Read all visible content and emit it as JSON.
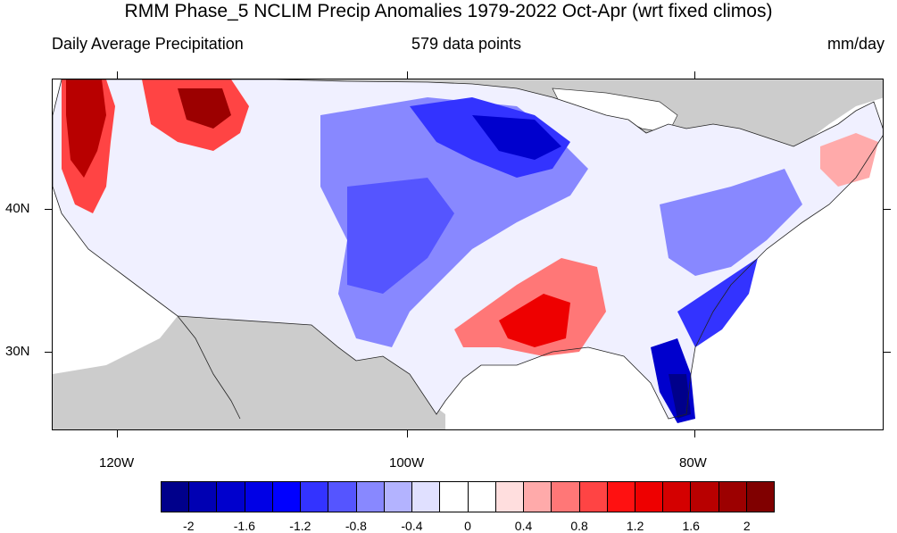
{
  "title": "RMM Phase_5 NCLIM Precip Anomalies 1979-2022 Oct-Apr (wrt fixed climos)",
  "subtitle_left": "Daily Average Precipitation",
  "subtitle_center": "579 data points",
  "subtitle_right": "mm/day",
  "axes": {
    "lat_labels": [
      "40N",
      "30N"
    ],
    "lon_labels": [
      "120W",
      "100W",
      "80W"
    ]
  },
  "colorbar": {
    "colors": [
      "#00008b",
      "#0000b3",
      "#0000cd",
      "#0000e6",
      "#0000ff",
      "#3333ff",
      "#5555ff",
      "#8888ff",
      "#b3b3ff",
      "#e0e0ff",
      "#ffffff",
      "#ffffff",
      "#ffdede",
      "#ffaaaa",
      "#ff7777",
      "#ff4444",
      "#ff1111",
      "#ee0000",
      "#d40000",
      "#b80000",
      "#9c0000",
      "#800000"
    ],
    "labels": [
      "-2",
      "-1.6",
      "-1.2",
      "-0.8",
      "-0.4",
      "0",
      "0.4",
      "0.8",
      "1.2",
      "1.6",
      "2"
    ]
  },
  "colors": {
    "land_mask": "#cccccc",
    "ocean": "#ffffff",
    "strong_negative": "#0000cd",
    "strong_positive": "#8b0000"
  }
}
